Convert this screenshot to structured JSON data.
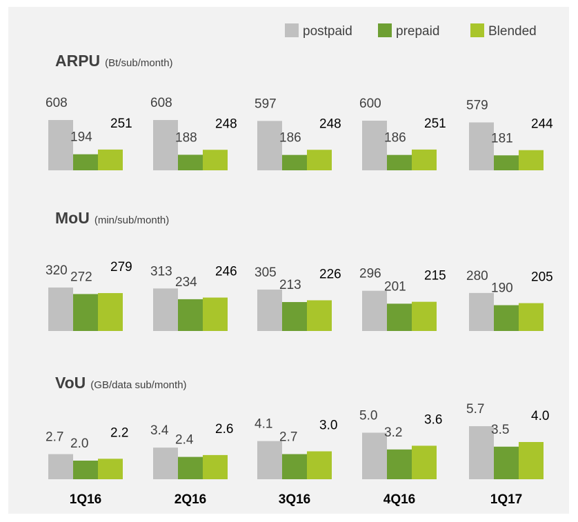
{
  "chart_data": [
    {
      "type": "bar",
      "title": "ARPU",
      "subtitle": "(Bt/sub/month)",
      "series": [
        {
          "name": "postpaid",
          "color": "#c0c0c0",
          "values": [
            608,
            608,
            597,
            600,
            579
          ]
        },
        {
          "name": "prepaid",
          "color": "#6e9f33",
          "values": [
            194,
            188,
            186,
            186,
            181
          ]
        },
        {
          "name": "Blended",
          "color": "#a9c52b",
          "values": [
            251,
            248,
            248,
            251,
            244
          ]
        }
      ],
      "legend": "top-right"
    },
    {
      "type": "bar",
      "title": "MoU",
      "subtitle": "(min/sub/month)",
      "series": [
        {
          "name": "postpaid",
          "color": "#c0c0c0",
          "values": [
            320,
            313,
            305,
            296,
            280
          ]
        },
        {
          "name": "prepaid",
          "color": "#6e9f33",
          "values": [
            272,
            234,
            213,
            201,
            190
          ]
        },
        {
          "name": "Blended",
          "color": "#a9c52b",
          "values": [
            279,
            246,
            226,
            215,
            205
          ]
        }
      ]
    },
    {
      "type": "bar",
      "title": "VoU",
      "subtitle": "(GB/data sub/month)",
      "categories": [
        "1Q16",
        "2Q16",
        "3Q16",
        "4Q16",
        "1Q17"
      ],
      "series": [
        {
          "name": "postpaid",
          "color": "#c0c0c0",
          "values": [
            2.7,
            3.4,
            4.1,
            5.0,
            5.7
          ],
          "value_labels": [
            "2.7",
            "3.4",
            "4.1",
            "5.0",
            "5.7"
          ]
        },
        {
          "name": "prepaid",
          "color": "#6e9f33",
          "values": [
            2.0,
            2.4,
            2.7,
            3.2,
            3.5
          ],
          "value_labels": [
            "2.0",
            "2.4",
            "2.7",
            "3.2",
            "3.5"
          ]
        },
        {
          "name": "Blended",
          "color": "#a9c52b",
          "values": [
            2.2,
            2.6,
            3.0,
            3.6,
            4.0
          ],
          "value_labels": [
            "2.2",
            "2.6",
            "3.0",
            "3.6",
            "4.0"
          ]
        }
      ]
    }
  ]
}
